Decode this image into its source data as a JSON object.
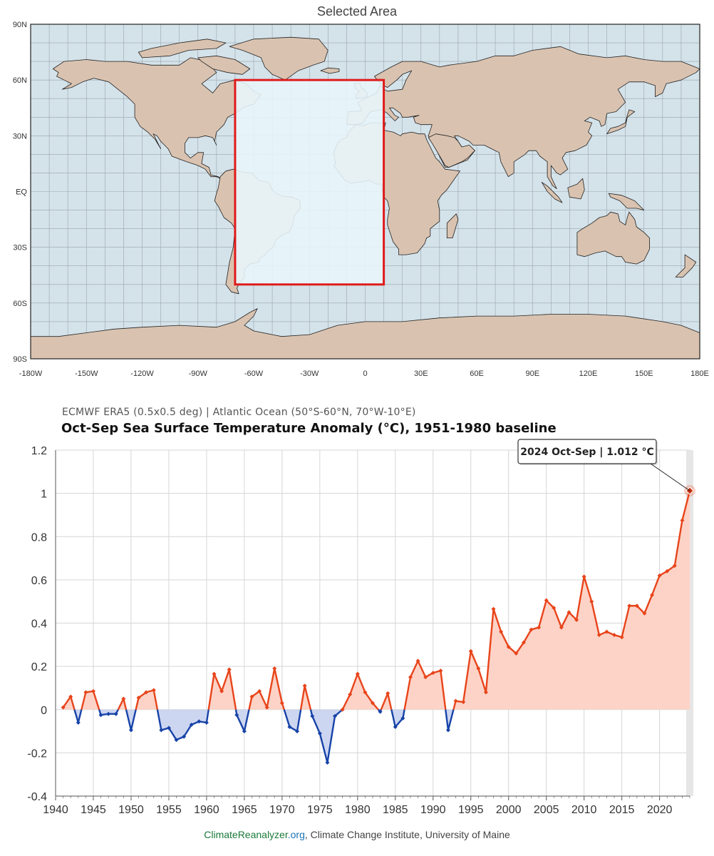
{
  "map": {
    "title": "Selected Area",
    "lat_labels": [
      "90N",
      "60N",
      "30N",
      "EQ",
      "30S",
      "60S",
      "90S"
    ],
    "lon_labels": [
      "-180W",
      "-150W",
      "-120W",
      "-90W",
      "-60W",
      "-30W",
      "0",
      "30E",
      "60E",
      "90E",
      "120E",
      "150E",
      "180E"
    ],
    "selection": {
      "lat_min": -50,
      "lat_max": 60,
      "lon_min": -70,
      "lon_max": 10
    },
    "colors": {
      "ocean": "#d4e2ea",
      "land": "#d9c3b0",
      "selection_fill": "#e8f6fc",
      "selection_border": "#e01b1b"
    }
  },
  "chart_data": {
    "type": "area",
    "subtitle": "ECMWF ERA5 (0.5x0.5 deg) | Atlantic Ocean (50°S-60°N, 70°W-10°E)",
    "title": "Oct-Sep Sea Surface Temperature Anomaly (°C), 1951-1980 baseline",
    "xlabel": "",
    "ylabel": "",
    "xlim": [
      1940,
      2024
    ],
    "ylim": [
      -0.4,
      1.2
    ],
    "yticks": [
      "1.2",
      "1",
      "0.8",
      "0.6",
      "0.4",
      "0.2",
      "0",
      "-0.2",
      "-0.4"
    ],
    "xticks": [
      "1940",
      "1945",
      "1950",
      "1955",
      "1960",
      "1965",
      "1970",
      "1975",
      "1980",
      "1985",
      "1990",
      "1995",
      "2000",
      "2005",
      "2010",
      "2015",
      "2020"
    ],
    "grid": true,
    "series": [
      {
        "x": [
          1941,
          1942,
          1943,
          1944,
          1945,
          1946,
          1947,
          1948,
          1949,
          1950,
          1951,
          1952,
          1953,
          1954,
          1955,
          1956,
          1957,
          1958,
          1959,
          1960,
          1961,
          1962,
          1963,
          1964,
          1965,
          1966,
          1967,
          1968,
          1969,
          1970,
          1971,
          1972,
          1973,
          1974,
          1975,
          1976,
          1977,
          1978,
          1979,
          1980,
          1981,
          1982,
          1983,
          1984,
          1985,
          1986,
          1987,
          1988,
          1989,
          1990,
          1991,
          1992,
          1993,
          1994,
          1995,
          1996,
          1997,
          1998,
          1999,
          2000,
          2001,
          2002,
          2003,
          2004,
          2005,
          2006,
          2007,
          2008,
          2009,
          2010,
          2011,
          2012,
          2013,
          2014,
          2015,
          2016,
          2017,
          2018,
          2019,
          2020,
          2021,
          2022,
          2023,
          2024
        ],
        "values": [
          0.01,
          0.06,
          -0.06,
          0.08,
          0.085,
          -0.025,
          -0.02,
          -0.02,
          0.05,
          -0.095,
          0.055,
          0.08,
          0.09,
          -0.095,
          -0.085,
          -0.14,
          -0.125,
          -0.07,
          -0.055,
          -0.06,
          0.165,
          0.085,
          0.185,
          -0.025,
          -0.1,
          0.06,
          0.085,
          0.01,
          0.19,
          0.03,
          -0.08,
          -0.1,
          0.11,
          -0.03,
          -0.11,
          -0.245,
          -0.03,
          0.0,
          0.07,
          0.165,
          0.08,
          0.03,
          -0.01,
          0.075,
          -0.08,
          -0.04,
          0.15,
          0.225,
          0.15,
          0.17,
          0.18,
          -0.095,
          0.04,
          0.035,
          0.27,
          0.19,
          0.08,
          0.465,
          0.36,
          0.29,
          0.26,
          0.31,
          0.37,
          0.38,
          0.505,
          0.47,
          0.38,
          0.45,
          0.415,
          0.615,
          0.5,
          0.345,
          0.36,
          0.345,
          0.335,
          0.48,
          0.48,
          0.445,
          0.53,
          0.62,
          0.64,
          0.665,
          0.875,
          1.012
        ]
      }
    ],
    "positive_color": "#e8441a",
    "negative_color": "#1743a8",
    "positive_fill": "#fdd3c7",
    "negative_fill": "#cdd6f0",
    "callout": "2024 Oct-Sep | 1.012 °C"
  },
  "footer": {
    "brand_part1": "ClimateReanalyzer",
    "brand_part2": ".org",
    "rest": ", Climate Change Institute, University of Maine"
  }
}
